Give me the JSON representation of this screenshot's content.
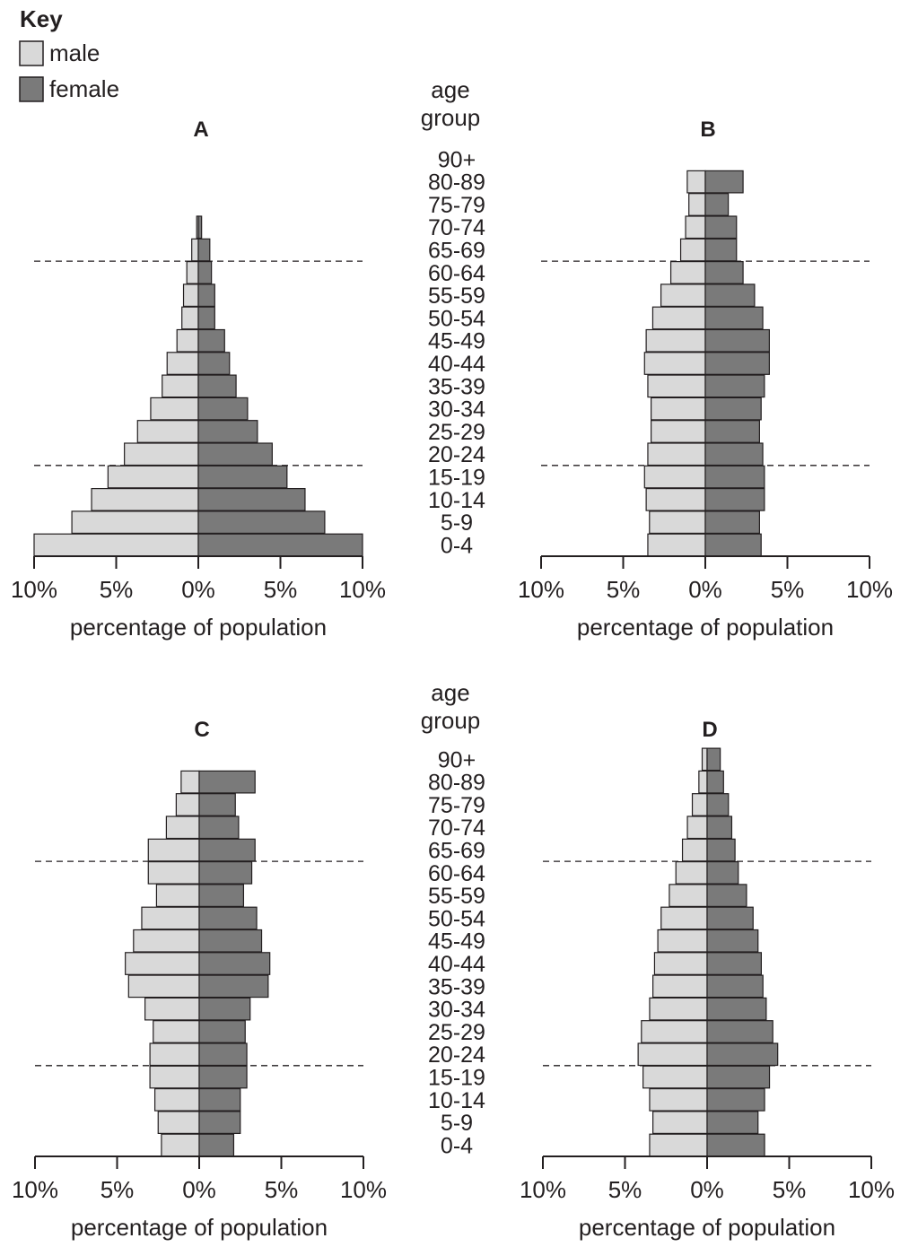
{
  "key": {
    "title": "Key",
    "items": [
      {
        "label": "male",
        "color": "#d9d9d9"
      },
      {
        "label": "female",
        "color": "#7a7a7a"
      }
    ]
  },
  "age_group_label": [
    "age",
    "group"
  ],
  "colors": {
    "male": "#d9d9d9",
    "female": "#7a7a7a",
    "stroke": "#231f20"
  },
  "chart_data": [
    {
      "type": "bar",
      "title": "A",
      "xlabel": "percentage of population",
      "ylabel": "age group",
      "x_ticks": [
        "10%",
        "5%",
        "0%",
        "5%",
        "10%"
      ],
      "xlim": [
        -10,
        10
      ],
      "categories": [
        "0-4",
        "5-9",
        "10-14",
        "15-19",
        "20-24",
        "25-29",
        "30-34",
        "35-39",
        "40-44",
        "45-49",
        "50-54",
        "55-59",
        "60-64",
        "65-69",
        "70-74",
        "75-79",
        "80-89",
        "90+"
      ],
      "series": [
        {
          "name": "male",
          "values": [
            10.0,
            7.7,
            6.5,
            5.5,
            4.5,
            3.7,
            2.9,
            2.2,
            1.9,
            1.3,
            1.0,
            0.9,
            0.7,
            0.4,
            0.1,
            0,
            0,
            0
          ]
        },
        {
          "name": "female",
          "values": [
            10.0,
            7.7,
            6.5,
            5.4,
            4.5,
            3.6,
            3.0,
            2.3,
            1.9,
            1.6,
            1.0,
            1.0,
            0.8,
            0.7,
            0.2,
            0,
            0,
            0
          ]
        }
      ],
      "dashed_lines_between": [
        [
          "15-19",
          "20-24"
        ],
        [
          "60-64",
          "65-69"
        ]
      ]
    },
    {
      "type": "bar",
      "title": "B",
      "xlabel": "percentage of population",
      "ylabel": "age group",
      "x_ticks": [
        "10%",
        "5%",
        "0%",
        "5%",
        "10%"
      ],
      "xlim": [
        -10,
        10
      ],
      "categories": [
        "0-4",
        "5-9",
        "10-14",
        "15-19",
        "20-24",
        "25-29",
        "30-34",
        "35-39",
        "40-44",
        "45-49",
        "50-54",
        "55-59",
        "60-64",
        "65-69",
        "70-74",
        "75-79",
        "80-89",
        "90+"
      ],
      "series": [
        {
          "name": "male",
          "values": [
            3.5,
            3.4,
            3.6,
            3.7,
            3.5,
            3.3,
            3.3,
            3.5,
            3.7,
            3.6,
            3.2,
            2.7,
            2.1,
            1.5,
            1.2,
            1.0,
            1.1,
            0
          ]
        },
        {
          "name": "female",
          "values": [
            3.4,
            3.3,
            3.6,
            3.6,
            3.5,
            3.3,
            3.4,
            3.6,
            3.9,
            3.9,
            3.5,
            3.0,
            2.3,
            1.9,
            1.9,
            1.4,
            2.3,
            0
          ]
        }
      ],
      "dashed_lines_between": [
        [
          "15-19",
          "20-24"
        ],
        [
          "60-64",
          "65-69"
        ]
      ]
    },
    {
      "type": "bar",
      "title": "C",
      "xlabel": "percentage of population",
      "ylabel": "age group",
      "x_ticks": [
        "10%",
        "5%",
        "0%",
        "5%",
        "10%"
      ],
      "xlim": [
        -10,
        10
      ],
      "categories": [
        "0-4",
        "5-9",
        "10-14",
        "15-19",
        "20-24",
        "25-29",
        "30-34",
        "35-39",
        "40-44",
        "45-49",
        "50-54",
        "55-59",
        "60-64",
        "65-69",
        "70-74",
        "75-79",
        "80-89",
        "90+"
      ],
      "series": [
        {
          "name": "male",
          "values": [
            2.3,
            2.5,
            2.7,
            3.0,
            3.0,
            2.8,
            3.3,
            4.3,
            4.5,
            4.0,
            3.5,
            2.6,
            3.1,
            3.1,
            2.0,
            1.4,
            1.1,
            0
          ]
        },
        {
          "name": "female",
          "values": [
            2.1,
            2.5,
            2.5,
            2.9,
            2.9,
            2.8,
            3.1,
            4.2,
            4.3,
            3.8,
            3.5,
            2.7,
            3.2,
            3.4,
            2.4,
            2.2,
            3.4,
            0
          ]
        }
      ],
      "dashed_lines_between": [
        [
          "15-19",
          "20-24"
        ],
        [
          "60-64",
          "65-69"
        ]
      ]
    },
    {
      "type": "bar",
      "title": "D",
      "xlabel": "percentage of population",
      "ylabel": "age group",
      "x_ticks": [
        "10%",
        "5%",
        "0%",
        "5%",
        "10%"
      ],
      "xlim": [
        -10,
        10
      ],
      "categories": [
        "0-4",
        "5-9",
        "10-14",
        "15-19",
        "20-24",
        "25-29",
        "30-34",
        "35-39",
        "40-44",
        "45-49",
        "50-54",
        "55-59",
        "60-64",
        "65-69",
        "70-74",
        "75-79",
        "80-89",
        "90+"
      ],
      "series": [
        {
          "name": "male",
          "values": [
            3.5,
            3.3,
            3.5,
            3.9,
            4.2,
            4.0,
            3.5,
            3.3,
            3.2,
            3.0,
            2.8,
            2.3,
            1.9,
            1.5,
            1.2,
            0.9,
            0.5,
            0.3
          ]
        },
        {
          "name": "female",
          "values": [
            3.5,
            3.1,
            3.5,
            3.8,
            4.3,
            4.0,
            3.6,
            3.4,
            3.3,
            3.1,
            2.8,
            2.4,
            1.9,
            1.7,
            1.5,
            1.3,
            1.0,
            0.8
          ]
        }
      ],
      "dashed_lines_between": [
        [
          "15-19",
          "20-24"
        ],
        [
          "60-64",
          "65-69"
        ]
      ]
    }
  ]
}
